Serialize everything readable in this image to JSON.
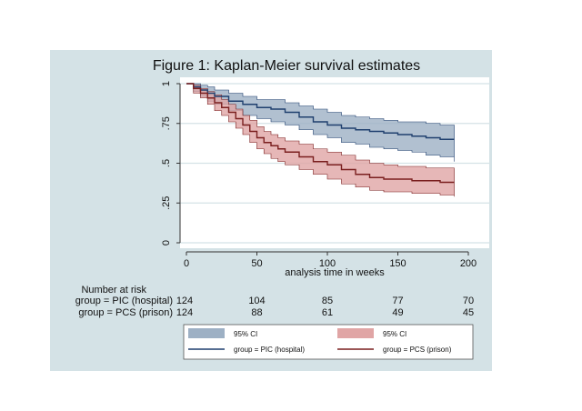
{
  "chart_data": {
    "type": "line",
    "subtype": "kaplan-meier-step",
    "title": "Figure 1: Kaplan-Meier survival estimates",
    "xlabel": "analysis time in weeks",
    "ylabel": "",
    "xlim": [
      0,
      200
    ],
    "ylim": [
      0,
      1
    ],
    "xticks": [
      "0",
      "50",
      "100",
      "150",
      "200"
    ],
    "yticks": [
      "0",
      ".25",
      ".5",
      ".75",
      "1"
    ],
    "ytick_values": [
      0,
      0.25,
      0.5,
      0.75,
      1
    ],
    "xtick_values": [
      0,
      50,
      100,
      150,
      200
    ],
    "grid": true,
    "series": [
      {
        "name": "group = PIC (hospital)",
        "color": "#1f3f6e",
        "ci_color": "#9db0c4",
        "x": [
          0,
          5,
          10,
          15,
          20,
          30,
          40,
          50,
          60,
          70,
          80,
          90,
          100,
          110,
          120,
          130,
          140,
          150,
          160,
          170,
          180,
          190
        ],
        "y": [
          1.0,
          0.98,
          0.96,
          0.94,
          0.92,
          0.89,
          0.87,
          0.85,
          0.84,
          0.82,
          0.79,
          0.76,
          0.74,
          0.72,
          0.71,
          0.7,
          0.69,
          0.68,
          0.67,
          0.66,
          0.65,
          0.65
        ],
        "ci_lower": [
          1.0,
          0.95,
          0.92,
          0.89,
          0.87,
          0.83,
          0.8,
          0.78,
          0.76,
          0.74,
          0.71,
          0.68,
          0.66,
          0.63,
          0.62,
          0.6,
          0.59,
          0.58,
          0.57,
          0.55,
          0.54,
          0.51
        ],
        "ci_upper": [
          1.0,
          1.0,
          0.99,
          0.98,
          0.96,
          0.94,
          0.92,
          0.9,
          0.9,
          0.88,
          0.86,
          0.84,
          0.82,
          0.8,
          0.79,
          0.78,
          0.77,
          0.76,
          0.76,
          0.75,
          0.74,
          0.73
        ],
        "ci_label": "95% CI"
      },
      {
        "name": "group = PCS (prison)",
        "color": "#7a1f1f",
        "ci_color": "#e0a5a5",
        "x": [
          0,
          5,
          10,
          15,
          20,
          25,
          30,
          35,
          40,
          45,
          50,
          55,
          60,
          65,
          70,
          80,
          90,
          100,
          110,
          120,
          130,
          140,
          150,
          160,
          170,
          180,
          190
        ],
        "y": [
          1.0,
          0.97,
          0.94,
          0.91,
          0.88,
          0.85,
          0.82,
          0.78,
          0.74,
          0.7,
          0.66,
          0.63,
          0.61,
          0.59,
          0.57,
          0.54,
          0.51,
          0.49,
          0.46,
          0.43,
          0.41,
          0.4,
          0.4,
          0.39,
          0.39,
          0.38,
          0.38
        ],
        "ci_lower": [
          1.0,
          0.94,
          0.91,
          0.87,
          0.83,
          0.8,
          0.76,
          0.72,
          0.68,
          0.63,
          0.59,
          0.56,
          0.53,
          0.51,
          0.49,
          0.46,
          0.43,
          0.4,
          0.37,
          0.35,
          0.33,
          0.32,
          0.32,
          0.31,
          0.31,
          0.3,
          0.29
        ],
        "ci_upper": [
          1.0,
          0.99,
          0.97,
          0.95,
          0.93,
          0.9,
          0.87,
          0.84,
          0.8,
          0.77,
          0.73,
          0.7,
          0.68,
          0.66,
          0.64,
          0.62,
          0.59,
          0.57,
          0.55,
          0.52,
          0.5,
          0.49,
          0.48,
          0.48,
          0.47,
          0.47,
          0.47
        ],
        "ci_label": "95% CI"
      }
    ],
    "risk_table": {
      "header": "Number at risk",
      "rows": [
        {
          "label": "group = PIC (hospital)",
          "values": [
            "124",
            "104",
            "85",
            "77",
            "70"
          ]
        },
        {
          "label": "group = PCS (prison)",
          "values": [
            "124",
            "88",
            "61",
            "49",
            "45"
          ]
        }
      ]
    },
    "legend_position": "bottom",
    "legend": [
      {
        "type": "area",
        "series": 0,
        "label": "95% CI"
      },
      {
        "type": "area",
        "series": 1,
        "label": "95% CI"
      },
      {
        "type": "line",
        "series": 0,
        "label": "group = PIC (hospital)"
      },
      {
        "type": "line",
        "series": 1,
        "label": "group = PCS (prison)"
      }
    ]
  }
}
